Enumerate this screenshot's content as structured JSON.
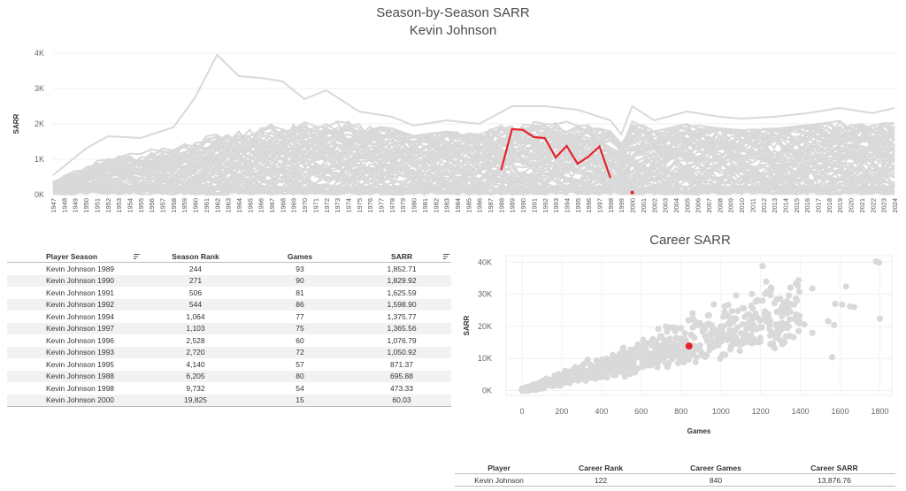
{
  "season_chart": {
    "title": "Season-by-Season SARR",
    "subtitle": "Kevin Johnson"
  },
  "career_chart": {
    "title": "Career SARR"
  },
  "chart_data": [
    {
      "type": "line",
      "title": "Season-by-Season SARR",
      "subtitle": "Kevin Johnson",
      "ylabel": "SARR",
      "xlabel": "",
      "x_start": 1947,
      "x_end": 2024,
      "ylim": [
        0,
        4000
      ],
      "yticks": [
        "0K",
        "1K",
        "2K",
        "3K",
        "4K"
      ],
      "grid": true,
      "background_color": "#d9d9d9",
      "highlight_color": "#e3242b",
      "background_envelope": {
        "x": [
          1947,
          1950,
          1952,
          1955,
          1958,
          1960,
          1962,
          1964,
          1966,
          1968,
          1970,
          1972,
          1975,
          1978,
          1980,
          1983,
          1986,
          1989,
          1992,
          1995,
          1998,
          1999,
          2000,
          2002,
          2005,
          2008,
          2010,
          2013,
          2016,
          2019,
          2022,
          2024
        ],
        "max": [
          550,
          1300,
          1650,
          1600,
          1900,
          2750,
          3950,
          3350,
          3300,
          3200,
          2700,
          2950,
          2350,
          2200,
          1950,
          2100,
          2000,
          2500,
          2500,
          2400,
          2100,
          1700,
          2500,
          2100,
          2350,
          2200,
          2150,
          2200,
          2300,
          2450,
          2300,
          2450
        ],
        "typ": [
          350,
          700,
          1000,
          1050,
          1200,
          1350,
          1500,
          1600,
          1700,
          1750,
          1850,
          1800,
          1800,
          1750,
          1750,
          1700,
          1700,
          1800,
          1800,
          1800,
          1750,
          1500,
          1900,
          1800,
          1850,
          1850,
          1850,
          1850,
          1850,
          1900,
          1850,
          1900
        ]
      },
      "series": [
        {
          "name": "Kevin Johnson",
          "x": [
            1988,
            1989,
            1990,
            1991,
            1992,
            1993,
            1994,
            1995,
            1996,
            1997,
            1998
          ],
          "values": [
            695.88,
            1852.71,
            1829.92,
            1625.59,
            1598.9,
            1050.92,
            1375.77,
            871.37,
            1076.79,
            1365.56,
            473.33
          ]
        },
        {
          "name": "Kevin Johnson",
          "x": [
            2000
          ],
          "values": [
            60.03
          ]
        }
      ]
    },
    {
      "type": "scatter",
      "title": "Career SARR",
      "xlabel": "Games",
      "ylabel": "SARR",
      "xlim": [
        -80,
        1860
      ],
      "ylim": [
        -1500,
        42000
      ],
      "xticks": [
        0,
        200,
        400,
        600,
        800,
        1000,
        1200,
        1400,
        1600,
        1800
      ],
      "yticks": [
        0,
        10000,
        20000,
        30000,
        40000
      ],
      "ytick_labels": [
        "0K",
        "10K",
        "20K",
        "30K",
        "40K"
      ],
      "grid": true,
      "highlight": {
        "x": 840,
        "y": 13876.76,
        "color": "#e3242b"
      },
      "outliers": [
        {
          "x": 1210,
          "y": 38800
        },
        {
          "x": 1780,
          "y": 40200
        },
        {
          "x": 1795,
          "y": 39800
        },
        {
          "x": 1800,
          "y": 22400
        },
        {
          "x": 1630,
          "y": 32400
        },
        {
          "x": 1610,
          "y": 26800
        },
        {
          "x": 1650,
          "y": 26200
        },
        {
          "x": 1575,
          "y": 27000
        },
        {
          "x": 1670,
          "y": 26000
        },
        {
          "x": 1570,
          "y": 20400
        },
        {
          "x": 1460,
          "y": 31800
        },
        {
          "x": 1540,
          "y": 21600
        },
        {
          "x": 1560,
          "y": 10400
        },
        {
          "x": 1395,
          "y": 23200
        },
        {
          "x": 1420,
          "y": 20600
        },
        {
          "x": 1320,
          "y": 26600
        },
        {
          "x": 1340,
          "y": 25400
        },
        {
          "x": 1210,
          "y": 28000
        },
        {
          "x": 1270,
          "y": 27200
        },
        {
          "x": 1160,
          "y": 25600
        },
        {
          "x": 1240,
          "y": 21600
        },
        {
          "x": 1060,
          "y": 21800
        },
        {
          "x": 1300,
          "y": 15600
        },
        {
          "x": 1460,
          "y": 18000
        }
      ]
    }
  ],
  "season_table": {
    "headers": {
      "player_season": "Player Season",
      "season_rank": "Season Rank",
      "games": "Games",
      "sarr": "SARR"
    },
    "rows": [
      {
        "player_season": "Kevin Johnson 1989",
        "season_rank": "244",
        "games": "93",
        "sarr": "1,852.71"
      },
      {
        "player_season": "Kevin Johnson 1990",
        "season_rank": "271",
        "games": "90",
        "sarr": "1,829.92"
      },
      {
        "player_season": "Kevin Johnson 1991",
        "season_rank": "506",
        "games": "81",
        "sarr": "1,625.59"
      },
      {
        "player_season": "Kevin Johnson 1992",
        "season_rank": "544",
        "games": "86",
        "sarr": "1,598.90"
      },
      {
        "player_season": "Kevin Johnson 1994",
        "season_rank": "1,064",
        "games": "77",
        "sarr": "1,375.77"
      },
      {
        "player_season": "Kevin Johnson 1997",
        "season_rank": "1,103",
        "games": "75",
        "sarr": "1,365.56"
      },
      {
        "player_season": "Kevin Johnson 1996",
        "season_rank": "2,528",
        "games": "60",
        "sarr": "1,076.79"
      },
      {
        "player_season": "Kevin Johnson 1993",
        "season_rank": "2,720",
        "games": "72",
        "sarr": "1,050.92"
      },
      {
        "player_season": "Kevin Johnson 1995",
        "season_rank": "4,140",
        "games": "57",
        "sarr": "871.37"
      },
      {
        "player_season": "Kevin Johnson 1988",
        "season_rank": "6,205",
        "games": "80",
        "sarr": "695.88"
      },
      {
        "player_season": "Kevin Johnson 1998",
        "season_rank": "9,732",
        "games": "54",
        "sarr": "473.33"
      },
      {
        "player_season": "Kevin Johnson 2000",
        "season_rank": "19,825",
        "games": "15",
        "sarr": "60.03"
      }
    ]
  },
  "career_table": {
    "headers": {
      "player": "Player",
      "career_rank": "Career Rank",
      "career_games": "Career Games",
      "career_sarr": "Career SARR"
    },
    "row": {
      "player": "Kevin Johnson",
      "career_rank": "122",
      "career_games": "840",
      "career_sarr": "13,876.76"
    }
  }
}
